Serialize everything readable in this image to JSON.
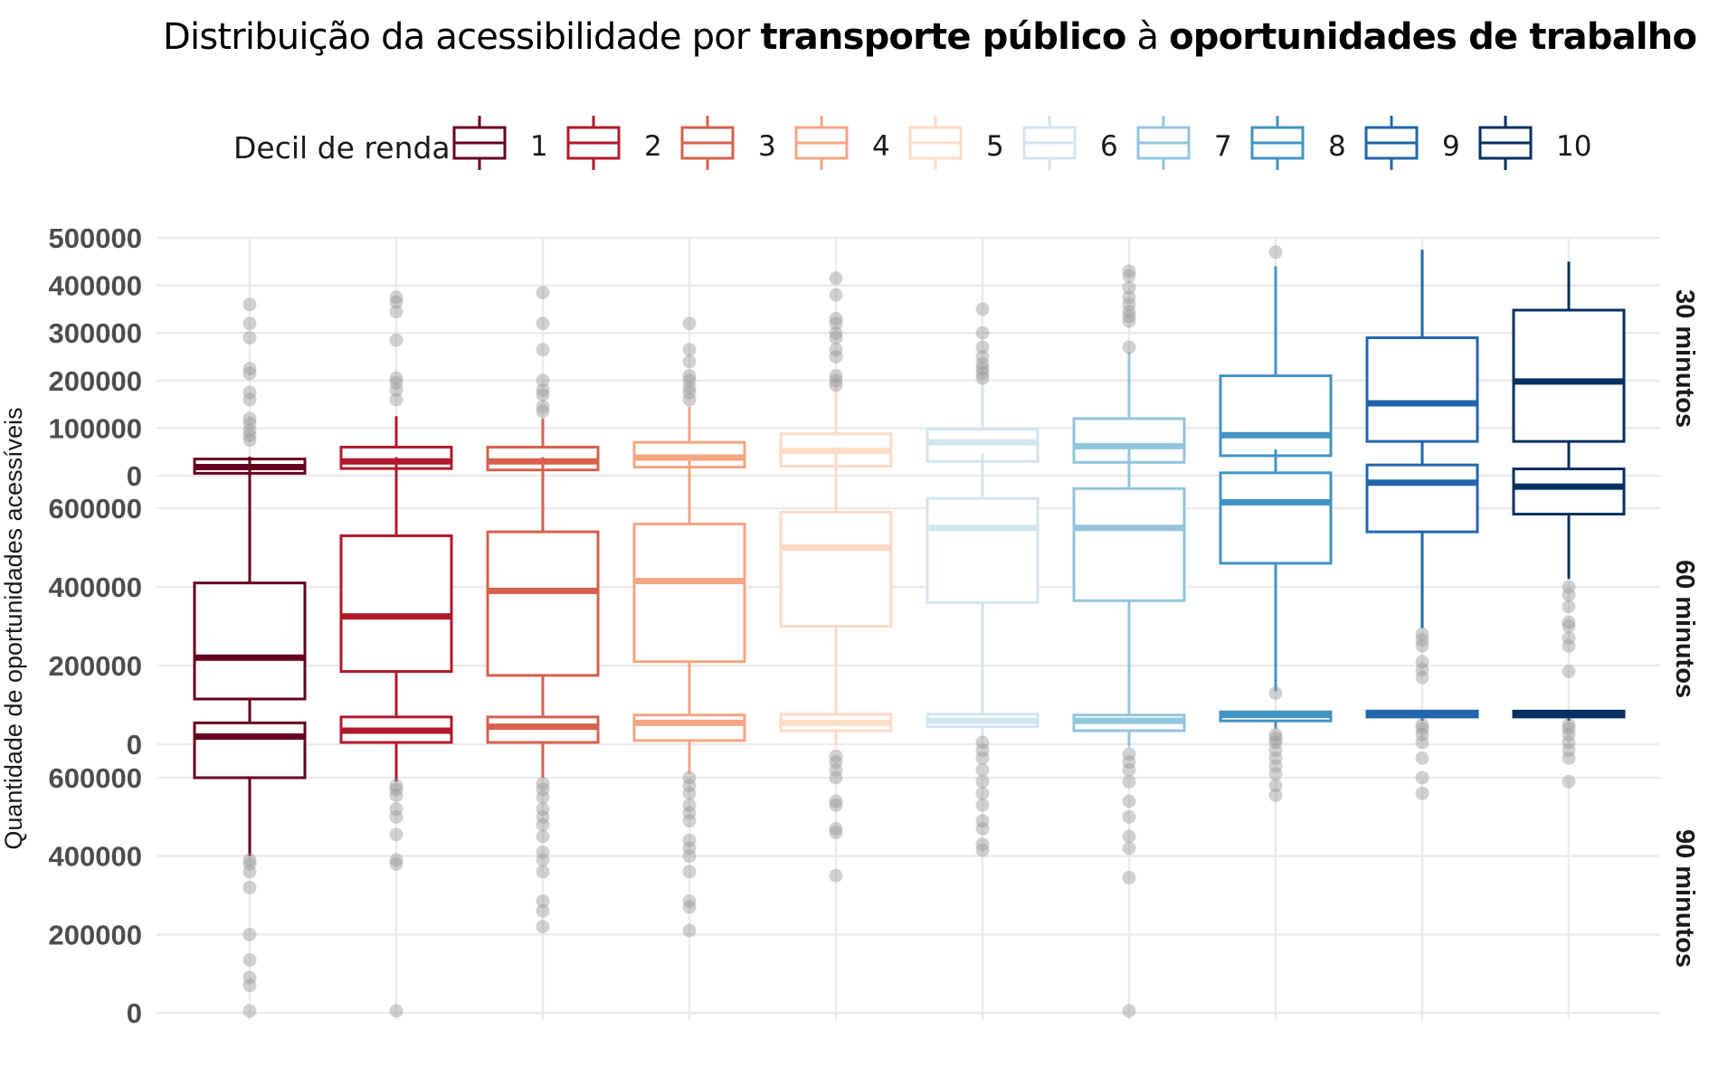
{
  "title": {
    "part1": "Distribuição da acessibilidade por ",
    "part2": "transporte público",
    "part3": " à ",
    "part4": "oportunidades de trabalho"
  },
  "chart_data": {
    "type": "boxplot",
    "ylabel": "Quantidade de oportunidades acessíveis",
    "legend": {
      "title": "Decil de renda",
      "position": "top",
      "entries": [
        "1",
        "2",
        "3",
        "4",
        "5",
        "6",
        "7",
        "8",
        "9",
        "10"
      ],
      "colors": [
        "#67001f",
        "#b2182b",
        "#d6604d",
        "#f4a582",
        "#fddbc7",
        "#d1e5f0",
        "#92c5de",
        "#4393c3",
        "#2166ac",
        "#053061"
      ]
    },
    "categories": [
      "1",
      "2",
      "3",
      "4",
      "5",
      "6",
      "7",
      "8",
      "9",
      "10"
    ],
    "outlier_color": "#999999",
    "grid": true,
    "panels": [
      {
        "strip": "30 minutos",
        "ylim": [
          0,
          500000
        ],
        "yticks": [
          0,
          100000,
          200000,
          300000,
          400000,
          500000
        ],
        "tick_labels": [
          "0",
          "100000",
          "200000",
          "300000",
          "400000",
          "500000"
        ],
        "boxes": [
          {
            "q1": 5000,
            "median": 18000,
            "q3": 35000,
            "whislo": 0,
            "whishi": 40000,
            "outliers": [
              75000,
              85000,
              95000,
              110000,
              120000,
              160000,
              175000,
              215000,
              225000,
              290000,
              320000,
              360000
            ]
          },
          {
            "q1": 15000,
            "median": 30000,
            "q3": 60000,
            "whislo": 0,
            "whishi": 125000,
            "outliers": [
              160000,
              180000,
              195000,
              205000,
              285000,
              345000,
              365000,
              375000
            ]
          },
          {
            "q1": 12000,
            "median": 30000,
            "q3": 60000,
            "whislo": 0,
            "whishi": 120000,
            "outliers": [
              135000,
              145000,
              170000,
              180000,
              200000,
              265000,
              320000,
              385000
            ]
          },
          {
            "q1": 18000,
            "median": 38000,
            "q3": 70000,
            "whislo": 0,
            "whishi": 145000,
            "outliers": [
              160000,
              175000,
              185000,
              200000,
              210000,
              240000,
              265000,
              320000
            ]
          },
          {
            "q1": 20000,
            "median": 52000,
            "q3": 88000,
            "whislo": 0,
            "whishi": 185000,
            "outliers": [
              190000,
              200000,
              210000,
              250000,
              265000,
              290000,
              300000,
              320000,
              330000,
              380000,
              415000
            ]
          },
          {
            "q1": 30000,
            "median": 70000,
            "q3": 98000,
            "whislo": 0,
            "whishi": 195000,
            "outliers": [
              205000,
              215000,
              225000,
              235000,
              250000,
              270000,
              300000,
              350000
            ]
          },
          {
            "q1": 28000,
            "median": 62000,
            "q3": 120000,
            "whislo": 0,
            "whishi": 260000,
            "outliers": [
              270000,
              325000,
              335000,
              345000,
              360000,
              375000,
              395000,
              420000,
              430000
            ]
          },
          {
            "q1": 42000,
            "median": 85000,
            "q3": 210000,
            "whislo": 0,
            "whishi": 440000,
            "outliers": [
              470000
            ]
          },
          {
            "q1": 72000,
            "median": 152000,
            "q3": 290000,
            "whislo": 0,
            "whishi": 475000,
            "outliers": []
          },
          {
            "q1": 72000,
            "median": 198000,
            "q3": 348000,
            "whislo": 0,
            "whishi": 450000,
            "outliers": []
          }
        ]
      },
      {
        "strip": "60 minutos",
        "ylim": [
          0,
          760000
        ],
        "yticks": [
          0,
          200000,
          400000,
          600000
        ],
        "tick_labels": [
          "0",
          "200000",
          "400000",
          "600000"
        ],
        "boxes": [
          {
            "q1": 115000,
            "median": 220000,
            "q3": 410000,
            "whislo": 0,
            "whishi": 725000,
            "outliers": []
          },
          {
            "q1": 185000,
            "median": 325000,
            "q3": 530000,
            "whislo": 0,
            "whishi": 730000,
            "outliers": []
          },
          {
            "q1": 175000,
            "median": 390000,
            "q3": 540000,
            "whislo": 25000,
            "whishi": 730000,
            "outliers": []
          },
          {
            "q1": 210000,
            "median": 415000,
            "q3": 560000,
            "whislo": 25000,
            "whishi": 720000,
            "outliers": []
          },
          {
            "q1": 300000,
            "median": 500000,
            "q3": 590000,
            "whislo": 0,
            "whishi": 740000,
            "outliers": []
          },
          {
            "q1": 360000,
            "median": 550000,
            "q3": 625000,
            "whislo": 25000,
            "whishi": 740000,
            "outliers": []
          },
          {
            "q1": 365000,
            "median": 550000,
            "q3": 650000,
            "whislo": 0,
            "whishi": 750000,
            "outliers": []
          },
          {
            "q1": 460000,
            "median": 615000,
            "q3": 690000,
            "whislo": 135000,
            "whishi": 750000,
            "outliers": [
              130000
            ]
          },
          {
            "q1": 540000,
            "median": 665000,
            "q3": 710000,
            "whislo": 295000,
            "whishi": 750000,
            "outliers": [
              170000,
              190000,
              210000,
              250000,
              265000,
              280000
            ]
          },
          {
            "q1": 585000,
            "median": 655000,
            "q3": 700000,
            "whislo": 420000,
            "whishi": 750000,
            "outliers": [
              185000,
              250000,
              270000,
              300000,
              310000,
              350000,
              380000,
              400000
            ]
          }
        ]
      },
      {
        "strip": "90 minutos",
        "ylim": [
          0,
          760000
        ],
        "yticks": [
          0,
          200000,
          400000,
          600000
        ],
        "tick_labels": [
          "0",
          "200000",
          "400000",
          "600000"
        ],
        "boxes": [
          {
            "q1": 600000,
            "median": 705000,
            "q3": 740000,
            "whislo": 400000,
            "whishi": 760000,
            "outliers": [
              5000,
              70000,
              90000,
              135000,
              200000,
              320000,
              360000,
              380000,
              390000
            ]
          },
          {
            "q1": 690000,
            "median": 720000,
            "q3": 755000,
            "whislo": 590000,
            "whishi": 765000,
            "outliers": [
              5000,
              380000,
              390000,
              455000,
              500000,
              520000,
              555000,
              570000,
              580000
            ]
          },
          {
            "q1": 690000,
            "median": 730000,
            "q3": 755000,
            "whislo": 600000,
            "whishi": 765000,
            "outliers": [
              220000,
              260000,
              285000,
              360000,
              390000,
              410000,
              450000,
              480000,
              500000,
              520000,
              550000,
              570000,
              585000
            ]
          },
          {
            "q1": 695000,
            "median": 740000,
            "q3": 760000,
            "whislo": 610000,
            "whishi": 768000,
            "outliers": [
              210000,
              270000,
              285000,
              360000,
              400000,
              420000,
              440000,
              490000,
              510000,
              530000,
              560000,
              580000,
              600000
            ]
          },
          {
            "q1": 720000,
            "median": 740000,
            "q3": 762000,
            "whislo": 680000,
            "whishi": 768000,
            "outliers": [
              350000,
              460000,
              470000,
              530000,
              540000,
              600000,
              620000,
              640000,
              655000
            ]
          },
          {
            "q1": 730000,
            "median": 745000,
            "q3": 762000,
            "whislo": 700000,
            "whishi": 768000,
            "outliers": [
              415000,
              430000,
              470000,
              490000,
              530000,
              560000,
              590000,
              620000,
              650000,
              670000,
              690000
            ]
          },
          {
            "q1": 720000,
            "median": 745000,
            "q3": 760000,
            "whislo": 680000,
            "whishi": 768000,
            "outliers": [
              5000,
              345000,
              420000,
              450000,
              500000,
              540000,
              590000,
              620000,
              640000,
              660000
            ]
          },
          {
            "q1": 745000,
            "median": 760000,
            "q3": 768000,
            "whislo": 725000,
            "whishi": 770000,
            "outliers": [
              555000,
              580000,
              610000,
              630000,
              650000,
              670000,
              690000,
              700000,
              710000
            ]
          },
          {
            "q1": 755000,
            "median": 765000,
            "q3": 770000,
            "whislo": 745000,
            "whishi": 772000,
            "outliers": [
              560000,
              600000,
              650000,
              690000,
              710000,
              725000,
              735000
            ]
          },
          {
            "q1": 755000,
            "median": 765000,
            "q3": 770000,
            "whislo": 745000,
            "whishi": 772000,
            "outliers": [
              590000,
              650000,
              670000,
              690000,
              710000,
              725000,
              735000
            ]
          }
        ]
      }
    ]
  }
}
